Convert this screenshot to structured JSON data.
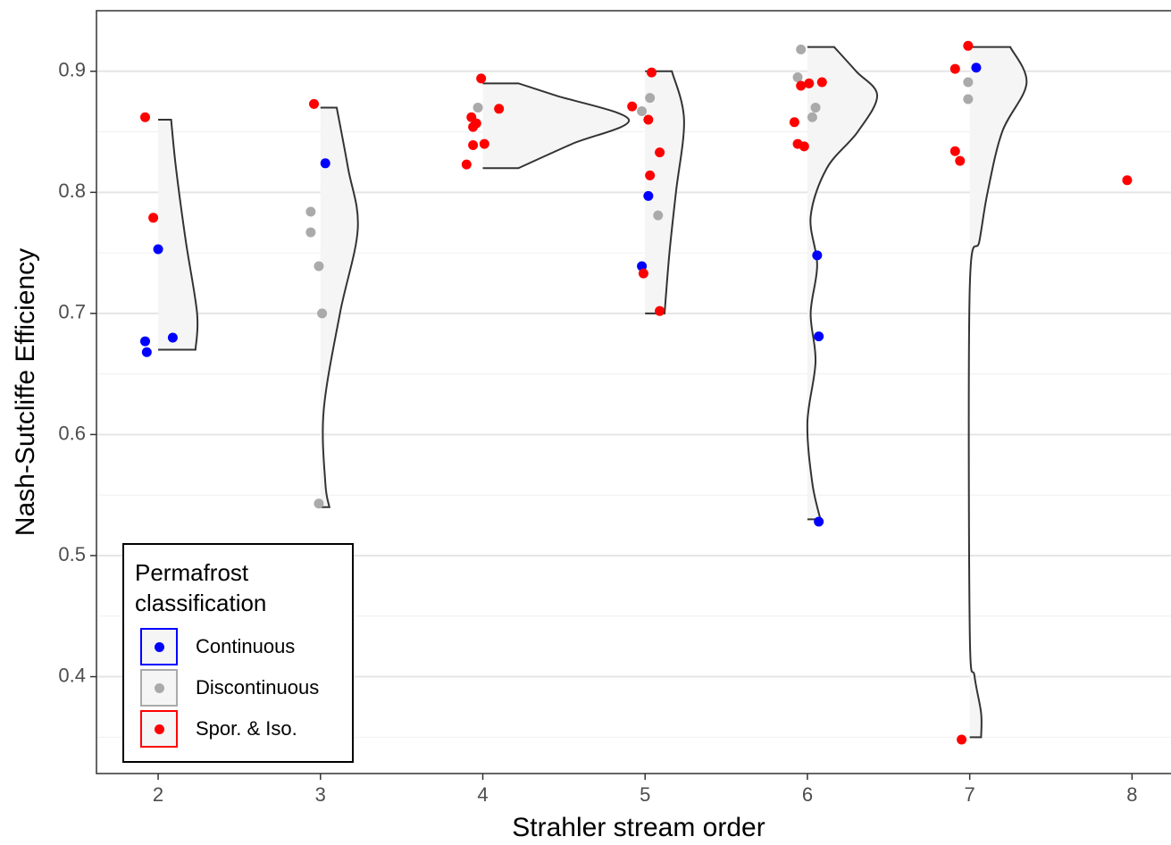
{
  "chart_data": {
    "type": "scatter",
    "x_label": "Strahler stream order",
    "y_label": "Nash-Sutcliffe Efficiency",
    "xlim": [
      1.62,
      8.24
    ],
    "ylim": [
      0.32,
      0.95
    ],
    "xticks": [
      2,
      3,
      4,
      5,
      6,
      7,
      8
    ],
    "yticks": [
      0.4,
      0.5,
      0.6,
      0.7,
      0.8,
      0.9
    ],
    "y_minor_gridlines": [
      0.35,
      0.45,
      0.55,
      0.65,
      0.75,
      0.85
    ],
    "grid": true,
    "legend_title": "Permafrost classification",
    "legend_position": "bottom-left",
    "series": [
      {
        "name": "Continuous",
        "color": "#0000ff",
        "x": [
          2.0,
          1.92,
          1.93,
          2.09,
          3.03,
          5.02,
          4.98,
          6.06,
          6.07,
          6.07,
          7.04
        ],
        "y": [
          0.753,
          0.677,
          0.668,
          0.68,
          0.824,
          0.797,
          0.739,
          0.748,
          0.681,
          0.528,
          0.903
        ]
      },
      {
        "name": "Discontinuous",
        "color": "#aaaaaa",
        "x": [
          2.94,
          2.94,
          2.99,
          3.01,
          2.99,
          3.97,
          4.98,
          5.03,
          5.08,
          5.96,
          5.94,
          6.05,
          6.03,
          6.99,
          6.99
        ],
        "y": [
          0.784,
          0.767,
          0.739,
          0.7,
          0.543,
          0.87,
          0.867,
          0.878,
          0.781,
          0.918,
          0.895,
          0.87,
          0.862,
          0.891,
          0.877
        ]
      },
      {
        "name": "Spor. & Iso.",
        "color": "#ff0000",
        "x": [
          1.92,
          1.97,
          2.96,
          3.99,
          4.1,
          3.93,
          3.96,
          3.94,
          3.94,
          4.01,
          3.9,
          4.92,
          5.04,
          5.02,
          5.09,
          5.03,
          4.99,
          5.09,
          5.96,
          6.01,
          6.09,
          5.92,
          5.94,
          5.98,
          6.99,
          6.91,
          6.91,
          6.94,
          6.95,
          7.97
        ],
        "y": [
          0.862,
          0.779,
          0.873,
          0.894,
          0.869,
          0.862,
          0.857,
          0.854,
          0.839,
          0.84,
          0.823,
          0.871,
          0.899,
          0.86,
          0.833,
          0.814,
          0.733,
          0.702,
          0.888,
          0.89,
          0.891,
          0.858,
          0.84,
          0.838,
          0.921,
          0.902,
          0.834,
          0.826,
          0.348,
          0.81
        ]
      }
    ],
    "violins": [
      {
        "x": 2,
        "y": [
          0.67,
          0.7,
          0.76,
          0.82,
          0.86
        ],
        "width": [
          0.23,
          0.24,
          0.17,
          0.11,
          0.08
        ]
      },
      {
        "x": 3,
        "y": [
          0.54,
          0.56,
          0.62,
          0.7,
          0.77,
          0.82,
          0.87
        ],
        "width": [
          0.055,
          0.03,
          0.02,
          0.12,
          0.23,
          0.17,
          0.1
        ]
      },
      {
        "x": 4,
        "y": [
          0.82,
          0.84,
          0.86,
          0.88,
          0.89
        ],
        "width": [
          0.22,
          0.55,
          0.9,
          0.45,
          0.22
        ]
      },
      {
        "x": 5,
        "y": [
          0.7,
          0.75,
          0.8,
          0.86,
          0.9
        ],
        "width": [
          0.12,
          0.15,
          0.19,
          0.24,
          0.165
        ]
      },
      {
        "x": 6,
        "y": [
          0.53,
          0.56,
          0.61,
          0.66,
          0.7,
          0.74,
          0.78,
          0.82,
          0.85,
          0.88,
          0.9,
          0.92
        ],
        "width": [
          0.08,
          0.03,
          0.0,
          0.05,
          0.02,
          0.06,
          0.02,
          0.12,
          0.31,
          0.43,
          0.3,
          0.165
        ]
      },
      {
        "x": 7,
        "y": [
          0.35,
          0.37,
          0.4,
          0.44,
          0.72,
          0.76,
          0.8,
          0.85,
          0.89,
          0.92
        ],
        "width": [
          0.07,
          0.07,
          0.03,
          0.0,
          0.0,
          0.06,
          0.11,
          0.2,
          0.35,
          0.25
        ]
      }
    ]
  }
}
